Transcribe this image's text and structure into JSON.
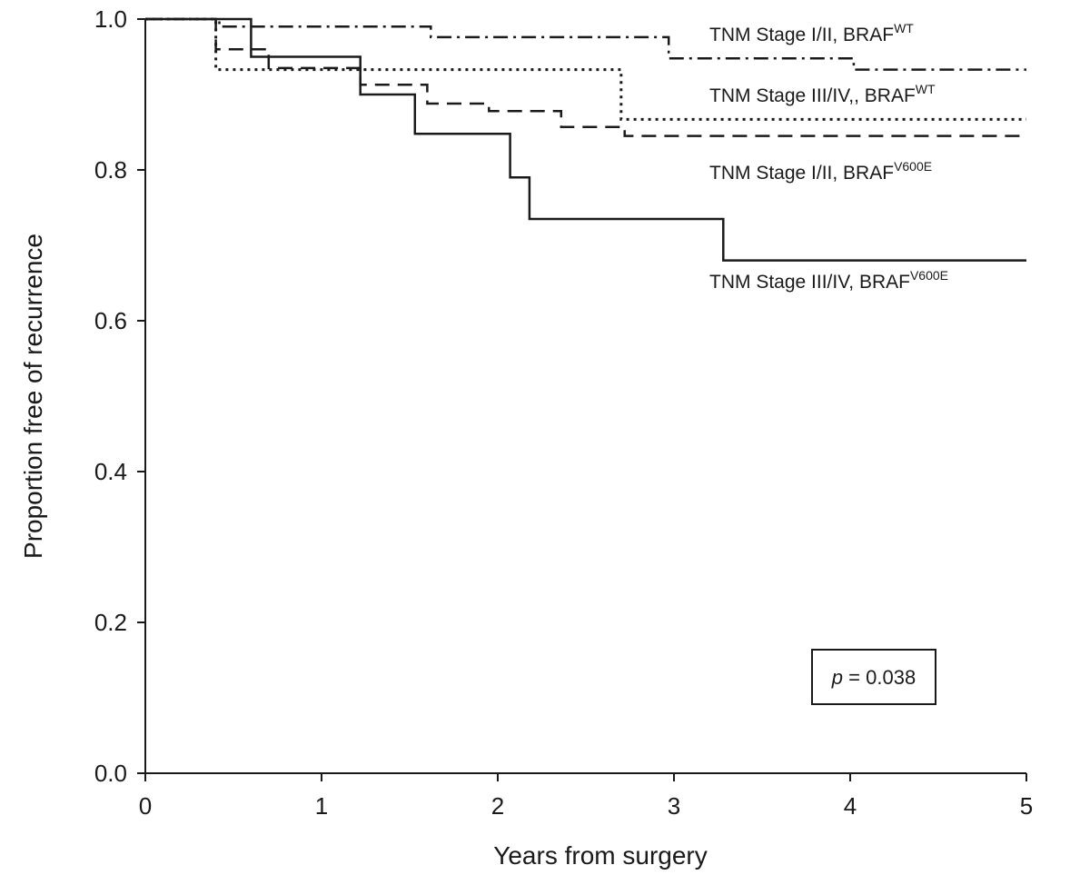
{
  "chart_data": {
    "type": "line",
    "xlabel": "Years from surgery",
    "ylabel": "Proportion free of recurrence",
    "xlim": [
      0,
      5
    ],
    "ylim": [
      0,
      1.0
    ],
    "x_ticks": [
      "0",
      "1",
      "2",
      "3",
      "4",
      "5"
    ],
    "y_ticks": [
      "0.0",
      "0.2",
      "0.4",
      "0.6",
      "0.8",
      "1.0"
    ],
    "grid": false,
    "annotation": {
      "prefix": "p",
      "text": " = 0.038"
    },
    "series": [
      {
        "name_base": "TNM Stage I/II, BRAF",
        "name_sup": "WT",
        "style": "dashdot",
        "steps": [
          [
            0,
            1.0
          ],
          [
            0.42,
            0.99
          ],
          [
            1.62,
            0.976
          ],
          [
            2.97,
            0.948
          ],
          [
            4.02,
            0.933
          ],
          [
            5.0,
            0.933
          ]
        ]
      },
      {
        "name_base": "TNM Stage III/IV,, BRAF",
        "name_sup": "WT",
        "style": "dotted",
        "steps": [
          [
            0,
            1.0
          ],
          [
            0.4,
            0.933
          ],
          [
            2.7,
            0.867
          ],
          [
            5.0,
            0.867
          ]
        ]
      },
      {
        "name_base": "TNM Stage I/II, BRAF",
        "name_sup": "V600E",
        "style": "dashed",
        "steps": [
          [
            0,
            1.0
          ],
          [
            0.4,
            0.96
          ],
          [
            0.7,
            0.935
          ],
          [
            1.22,
            0.913
          ],
          [
            1.6,
            0.888
          ],
          [
            1.95,
            0.878
          ],
          [
            2.36,
            0.857
          ],
          [
            2.72,
            0.845
          ],
          [
            5.0,
            0.845
          ]
        ]
      },
      {
        "name_base": "TNM Stage III/IV, BRAF",
        "name_sup": "V600E",
        "style": "solid",
        "steps": [
          [
            0,
            1.0
          ],
          [
            0.6,
            0.95
          ],
          [
            1.22,
            0.9
          ],
          [
            1.53,
            0.848
          ],
          [
            2.07,
            0.79
          ],
          [
            2.18,
            0.735
          ],
          [
            3.28,
            0.68
          ],
          [
            5.0,
            0.68
          ]
        ]
      }
    ]
  }
}
